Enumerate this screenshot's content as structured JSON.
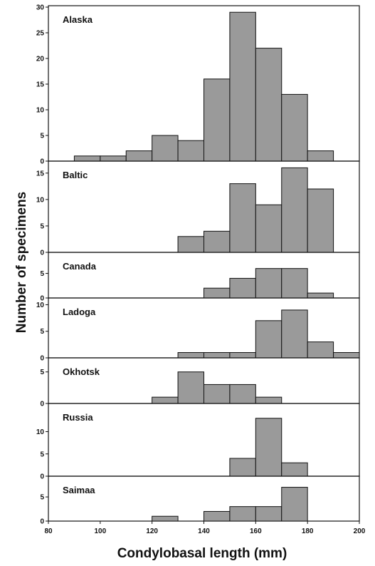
{
  "chart_data": {
    "type": "bar",
    "layout": "stacked-panels",
    "xlabel": "Condylobasal length (mm)",
    "ylabel": "Number of specimens",
    "xlim": [
      80,
      200
    ],
    "x_ticks": [
      80,
      100,
      120,
      140,
      160,
      180,
      200
    ],
    "bin_width": 10,
    "bin_starts": [
      80,
      90,
      100,
      110,
      120,
      130,
      140,
      150,
      160,
      170,
      180,
      190
    ],
    "panels": [
      {
        "name": "Alaska",
        "ylim": [
          0,
          30
        ],
        "y_ticks": [
          0,
          5,
          10,
          15,
          20,
          25,
          30
        ],
        "values": [
          0,
          1,
          1,
          2,
          5,
          4,
          16,
          29,
          22,
          13,
          2,
          0
        ]
      },
      {
        "name": "Baltic",
        "ylim": [
          0,
          17
        ],
        "y_ticks": [
          0,
          5,
          10,
          15
        ],
        "values": [
          0,
          0,
          0,
          0,
          0,
          3,
          4,
          13,
          9,
          16,
          12,
          0
        ]
      },
      {
        "name": "Canada",
        "ylim": [
          0,
          9
        ],
        "y_ticks": [
          0,
          5
        ],
        "values": [
          0,
          0,
          0,
          0,
          0,
          0,
          2,
          4,
          6,
          6,
          1,
          0
        ]
      },
      {
        "name": "Ladoga",
        "ylim": [
          0,
          11
        ],
        "y_ticks": [
          0,
          5,
          10
        ],
        "values": [
          0,
          0,
          0,
          0,
          0,
          1,
          1,
          1,
          7,
          9,
          3,
          1
        ]
      },
      {
        "name": "Okhotsk",
        "ylim": [
          0,
          7
        ],
        "y_ticks": [
          0,
          5
        ],
        "values": [
          0,
          0,
          0,
          0,
          1,
          5,
          3,
          3,
          1,
          0,
          0,
          0
        ]
      },
      {
        "name": "Russia",
        "ylim": [
          0,
          16
        ],
        "y_ticks": [
          0,
          5,
          10
        ],
        "values": [
          0,
          0,
          0,
          0,
          0,
          0,
          0,
          4,
          13,
          3,
          0,
          0
        ]
      },
      {
        "name": "Saimaa",
        "ylim": [
          0,
          9
        ],
        "y_ticks": [
          0,
          5
        ],
        "values": [
          0,
          0,
          0,
          0,
          1,
          0,
          2,
          3,
          3,
          7,
          0,
          0
        ]
      }
    ]
  }
}
